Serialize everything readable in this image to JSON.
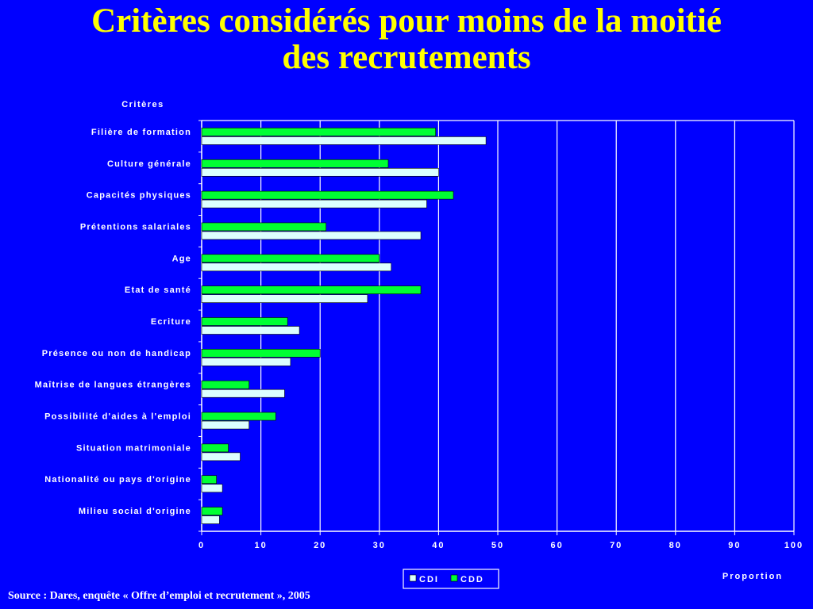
{
  "title": {
    "line1": "Critères considérés pour moins de la moitié",
    "line2": "des recrutements"
  },
  "source": "Source : Dares, enquête « Offre d’emploi et recrutement », 2005",
  "colors": {
    "background": "#0000ff",
    "title": "#ffff00",
    "text": "#ffffff",
    "cdd": "#00ff33",
    "cdi": "#dcffff"
  },
  "chart_data": {
    "type": "bar",
    "orientation": "horizontal",
    "title": "",
    "ylabel": "Critères",
    "xlabel": "Proportion",
    "xlim": [
      0,
      100
    ],
    "xticks": [
      0,
      10,
      20,
      30,
      40,
      50,
      60,
      70,
      80,
      90,
      100
    ],
    "grid": true,
    "legend": "bottom-center",
    "categories": [
      "Filière de formation",
      "Culture générale",
      "Capacités physiques",
      "Prétentions salariales",
      "Age",
      "Etat de santé",
      "Ecriture",
      "Présence ou non de handicap",
      "Maîtrise de langues étrangères",
      "Possibilité d'aides à l'emploi",
      "Situation matrimoniale",
      "Nationalité ou pays d'origine",
      "Milieu social d'origine"
    ],
    "series": [
      {
        "name": "CDI",
        "color": "#dcffff",
        "values": [
          48,
          40,
          38,
          37,
          32,
          28,
          16.5,
          15,
          14,
          8,
          6.5,
          3.5,
          3
        ]
      },
      {
        "name": "CDD",
        "color": "#00ff33",
        "values": [
          39.5,
          31.5,
          42.5,
          21,
          30,
          37,
          14.5,
          20,
          8,
          12.5,
          4.5,
          2.5,
          3.5
        ]
      }
    ]
  }
}
